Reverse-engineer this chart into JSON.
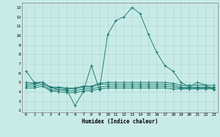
{
  "xlabel": "Humidex (Indice chaleur)",
  "bg_color": "#c8ebe8",
  "grid_color": "#b0d8d4",
  "line_color": "#1a7a6e",
  "x_ticks": [
    0,
    1,
    2,
    3,
    4,
    5,
    6,
    7,
    8,
    9,
    10,
    11,
    12,
    13,
    14,
    15,
    16,
    17,
    18,
    19,
    20,
    21,
    22,
    23
  ],
  "y_ticks": [
    2,
    3,
    4,
    5,
    6,
    7,
    8,
    9,
    10,
    11,
    12,
    13
  ],
  "ylim": [
    1.8,
    13.5
  ],
  "xlim": [
    -0.5,
    23.5
  ],
  "series": [
    [
      6.2,
      5.0,
      5.0,
      4.5,
      4.2,
      4.2,
      2.5,
      4.0,
      6.8,
      4.2,
      10.1,
      11.6,
      12.0,
      13.0,
      12.3,
      10.1,
      8.2,
      6.8,
      6.2,
      5.0,
      4.5,
      5.0,
      4.7,
      4.2
    ],
    [
      5.0,
      4.9,
      5.0,
      4.5,
      4.5,
      4.4,
      4.4,
      4.6,
      4.6,
      4.9,
      5.0,
      5.0,
      5.0,
      5.0,
      5.0,
      5.0,
      5.0,
      5.0,
      4.9,
      4.7,
      4.7,
      4.7,
      4.7,
      4.7
    ],
    [
      4.8,
      4.8,
      5.0,
      4.4,
      4.4,
      4.3,
      4.3,
      4.5,
      4.5,
      4.8,
      4.8,
      4.8,
      4.8,
      4.8,
      4.8,
      4.8,
      4.8,
      4.8,
      4.7,
      4.5,
      4.5,
      4.5,
      4.5,
      4.5
    ],
    [
      4.6,
      4.6,
      4.8,
      4.2,
      4.2,
      4.1,
      4.1,
      4.3,
      4.3,
      4.5,
      4.6,
      4.6,
      4.6,
      4.6,
      4.6,
      4.6,
      4.6,
      4.6,
      4.5,
      4.4,
      4.4,
      4.4,
      4.4,
      4.4
    ],
    [
      4.4,
      4.4,
      4.6,
      4.1,
      4.0,
      3.9,
      3.9,
      4.1,
      4.1,
      4.3,
      4.4,
      4.4,
      4.4,
      4.4,
      4.4,
      4.4,
      4.4,
      4.4,
      4.3,
      4.3,
      4.3,
      4.3,
      4.3,
      4.3
    ]
  ]
}
